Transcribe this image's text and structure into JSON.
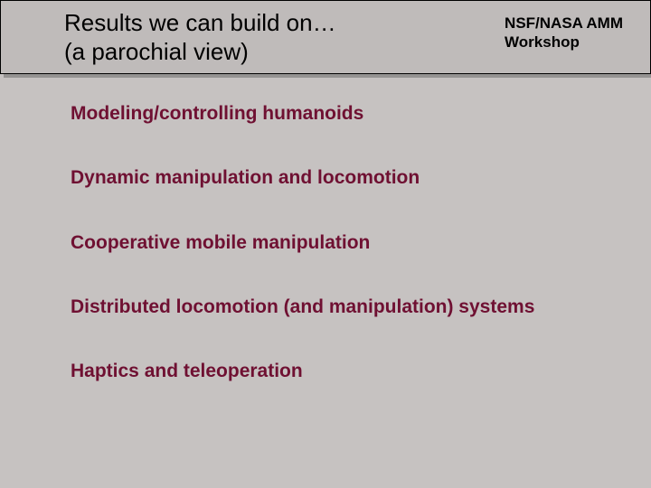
{
  "colors": {
    "slide_bg": "#c6c2c1",
    "header_bg": "#bfbbba",
    "title_color": "#000000",
    "workshop_color": "#000000",
    "topic_color": "#6f1032"
  },
  "header": {
    "title_line1": "Results we can build on…",
    "title_line2": "(a parochial view)",
    "workshop_line1": "NSF/NASA AMM",
    "workshop_line2": "Workshop"
  },
  "topics": [
    "Modeling/controlling humanoids",
    "Dynamic manipulation and locomotion",
    "Cooperative mobile manipulation",
    "Distributed locomotion (and manipulation) systems",
    "Haptics and teleoperation"
  ],
  "typography": {
    "title_fontsize": 26,
    "workshop_fontsize": 17,
    "topic_fontsize": 21
  }
}
